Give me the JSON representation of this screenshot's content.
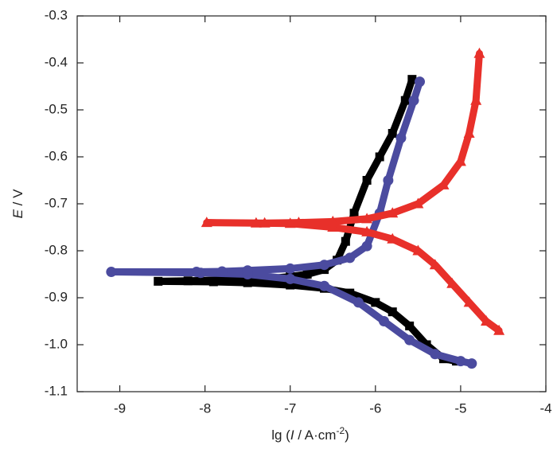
{
  "chart_data": {
    "type": "line",
    "x_label": [
      "lg (",
      "I",
      " / A·cm",
      "-2",
      ")"
    ],
    "y_label": [
      "E",
      " / V"
    ],
    "xlim": [
      -9.5,
      -4
    ],
    "ylim": [
      -1.1,
      -0.3
    ],
    "xticks": [
      -9,
      -8,
      -7,
      -6,
      -5,
      -4
    ],
    "yticks": [
      -0.3,
      -0.4,
      -0.5,
      -0.6,
      -0.7,
      -0.8,
      -0.9,
      {
        "value": -1,
        "label": "-1.0"
      },
      -1.1
    ],
    "series": [
      {
        "color": "#000000",
        "marker": "square",
        "x": [
          -5.05,
          -5.2,
          -5.4,
          -5.6,
          -5.8,
          -6.0,
          -6.3,
          -6.6,
          -7.0,
          -7.5,
          -7.9,
          -8.55,
          -8.2,
          -7.7,
          -7.3,
          -7.0,
          -6.8,
          -6.6,
          -6.45,
          -6.35,
          -6.25,
          -6.1,
          -5.95,
          -5.8,
          -5.65,
          -5.57
        ],
        "y": [
          -1.035,
          -1.03,
          -1.0,
          -0.96,
          -0.93,
          -0.91,
          -0.89,
          -0.88,
          -0.873,
          -0.868,
          -0.866,
          -0.865,
          -0.864,
          -0.862,
          -0.86,
          -0.855,
          -0.85,
          -0.84,
          -0.82,
          -0.78,
          -0.72,
          -0.65,
          -0.6,
          -0.55,
          -0.48,
          -0.435
        ]
      },
      {
        "color": "#4b4b9f",
        "marker": "circle",
        "x": [
          -4.87,
          -5.0,
          -5.3,
          -5.6,
          -5.9,
          -6.2,
          -6.6,
          -7.0,
          -7.5,
          -8.05,
          -9.1,
          -8.1,
          -7.8,
          -7.5,
          -7.0,
          -6.6,
          -6.3,
          -6.1,
          -5.95,
          -5.85,
          -5.7,
          -5.55,
          -5.48
        ],
        "y": [
          -1.04,
          -1.035,
          -1.02,
          -0.99,
          -0.95,
          -0.91,
          -0.875,
          -0.86,
          -0.85,
          -0.847,
          -0.845,
          -0.845,
          -0.844,
          -0.842,
          -0.838,
          -0.83,
          -0.815,
          -0.79,
          -0.72,
          -0.65,
          -0.56,
          -0.48,
          -0.44
        ]
      },
      {
        "color": "#e8302a",
        "marker": "triangle",
        "x": [
          -4.55,
          -4.7,
          -4.9,
          -5.1,
          -5.3,
          -5.5,
          -5.8,
          -6.1,
          -6.5,
          -7.0,
          -7.4,
          -7.98,
          -7.3,
          -6.9,
          -6.5,
          -6.1,
          -5.8,
          -5.5,
          -5.2,
          -5.0,
          -4.9,
          -4.82,
          -4.78
        ],
        "y": [
          -0.97,
          -0.95,
          -0.91,
          -0.87,
          -0.83,
          -0.8,
          -0.775,
          -0.76,
          -0.75,
          -0.742,
          -0.741,
          -0.74,
          -0.741,
          -0.74,
          -0.738,
          -0.732,
          -0.72,
          -0.7,
          -0.66,
          -0.61,
          -0.55,
          -0.48,
          -0.38
        ]
      }
    ]
  }
}
